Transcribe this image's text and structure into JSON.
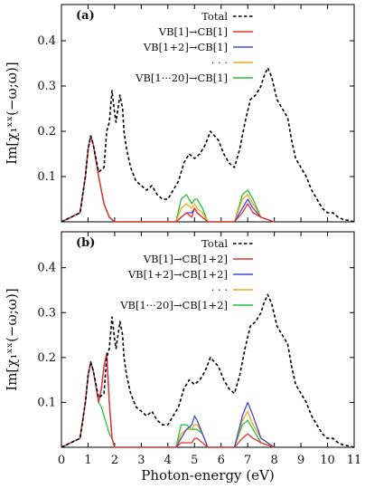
{
  "chart_data": [
    {
      "type": "line",
      "panel_label": "(a)",
      "xlabel": "",
      "ylabel": "Im[χ₁ˣˣ(−ω;ω)]",
      "xlim": [
        0,
        11
      ],
      "ylim": [
        0,
        0.48
      ],
      "xticks": [
        "0",
        "1",
        "2",
        "3",
        "4",
        "5",
        "6",
        "7",
        "8",
        "9",
        "10",
        "11"
      ],
      "yticks": [
        {
          "v": 0.1,
          "label": "0.1"
        },
        {
          "v": 0.2,
          "label": "0.2"
        },
        {
          "v": 0.3,
          "label": "0.3"
        },
        {
          "v": 0.4,
          "label": "0.4"
        }
      ],
      "legend_position": "top-right",
      "series": [
        {
          "name": "Total",
          "color": "#000000",
          "style": "dashed",
          "x": [
            0,
            0.7,
            0.9,
            1.0,
            1.1,
            1.2,
            1.4,
            1.6,
            1.7,
            1.8,
            1.9,
            2.0,
            2.05,
            2.2,
            2.3,
            2.35,
            2.45,
            2.6,
            2.8,
            3.0,
            3.2,
            3.4,
            3.6,
            3.8,
            4.0,
            4.2,
            4.4,
            4.6,
            4.8,
            5.0,
            5.2,
            5.4,
            5.6,
            5.75,
            5.9,
            6.1,
            6.3,
            6.5,
            6.7,
            6.9,
            7.1,
            7.3,
            7.5,
            7.6,
            7.75,
            7.9,
            8.1,
            8.3,
            8.5,
            8.65,
            8.8,
            9.0,
            9.2,
            9.4,
            9.6,
            9.8,
            10.0,
            10.2,
            10.4,
            10.6,
            10.8,
            11.0
          ],
          "y": [
            0,
            0.02,
            0.1,
            0.16,
            0.19,
            0.17,
            0.11,
            0.12,
            0.2,
            0.22,
            0.29,
            0.24,
            0.22,
            0.28,
            0.25,
            0.2,
            0.16,
            0.12,
            0.09,
            0.08,
            0.07,
            0.08,
            0.06,
            0.05,
            0.05,
            0.07,
            0.09,
            0.13,
            0.15,
            0.14,
            0.15,
            0.17,
            0.2,
            0.19,
            0.18,
            0.15,
            0.13,
            0.12,
            0.16,
            0.22,
            0.27,
            0.28,
            0.3,
            0.32,
            0.34,
            0.32,
            0.27,
            0.25,
            0.23,
            0.18,
            0.14,
            0.12,
            0.1,
            0.07,
            0.05,
            0.03,
            0.02,
            0.02,
            0.01,
            0.005,
            0.003,
            0
          ]
        },
        {
          "name": "VB[1]→CB[1]",
          "color": "#e8322d",
          "style": "solid",
          "x": [
            0,
            0.7,
            0.9,
            1.0,
            1.1,
            1.2,
            1.4,
            1.6,
            1.8,
            2.0,
            4.3,
            4.5,
            4.7,
            4.9,
            5.0,
            5.1,
            5.3,
            5.5,
            6.5,
            6.8,
            7.0,
            7.2,
            7.5,
            8.0
          ],
          "y": [
            0,
            0.02,
            0.1,
            0.16,
            0.19,
            0.17,
            0.1,
            0.04,
            0.01,
            0,
            0,
            0.01,
            0.02,
            0.01,
            0.03,
            0.02,
            0.01,
            0,
            0,
            0.02,
            0.04,
            0.02,
            0.01,
            0
          ]
        },
        {
          "name": "VB[1+2]→CB[1]",
          "color": "#3d4bd6",
          "style": "solid",
          "x": [
            0,
            0.7,
            0.9,
            1.0,
            1.1,
            1.2,
            1.4,
            1.6,
            1.8,
            2.0,
            4.3,
            4.5,
            4.7,
            4.9,
            5.0,
            5.1,
            5.3,
            5.5,
            6.5,
            6.8,
            7.0,
            7.2,
            7.5,
            8.0
          ],
          "y": [
            0,
            0.02,
            0.1,
            0.16,
            0.19,
            0.17,
            0.1,
            0.04,
            0.01,
            0,
            0,
            0.01,
            0.02,
            0.02,
            0.03,
            0.02,
            0.01,
            0,
            0,
            0.03,
            0.05,
            0.03,
            0.01,
            0
          ]
        },
        {
          "name": "· · ·",
          "color": "#f2a81d",
          "style": "solid",
          "x": [
            0,
            0.7,
            0.9,
            1.0,
            1.1,
            1.2,
            1.4,
            1.6,
            1.8,
            2.0,
            4.3,
            4.5,
            4.7,
            4.9,
            5.0,
            5.1,
            5.3,
            5.5,
            6.5,
            6.8,
            7.0,
            7.2,
            7.5,
            8.0
          ],
          "y": [
            0,
            0.02,
            0.1,
            0.16,
            0.19,
            0.17,
            0.1,
            0.04,
            0.01,
            0,
            0,
            0.03,
            0.04,
            0.03,
            0.04,
            0.03,
            0.02,
            0,
            0,
            0.05,
            0.06,
            0.04,
            0.01,
            0
          ]
        },
        {
          "name": "VB[1···20]→CB[1]",
          "color": "#27c23a",
          "style": "solid",
          "x": [
            0,
            0.7,
            0.9,
            1.0,
            1.1,
            1.2,
            1.4,
            1.6,
            1.8,
            2.0,
            4.3,
            4.5,
            4.7,
            4.9,
            5.0,
            5.1,
            5.3,
            5.5,
            6.5,
            6.8,
            7.0,
            7.2,
            7.5,
            8.0
          ],
          "y": [
            0,
            0.02,
            0.1,
            0.16,
            0.19,
            0.17,
            0.1,
            0.04,
            0.01,
            0,
            0,
            0.05,
            0.06,
            0.04,
            0.05,
            0.05,
            0.03,
            0,
            0,
            0.06,
            0.07,
            0.05,
            0.01,
            0
          ]
        }
      ],
      "legend": [
        {
          "label": "Total",
          "color": "#000000",
          "style": "dashed"
        },
        {
          "label": "VB[1]→CB[1]",
          "color": "#e8322d",
          "style": "solid"
        },
        {
          "label": "VB[1+2]→CB[1]",
          "color": "#3d4bd6",
          "style": "solid"
        },
        {
          "label": "· · ·",
          "color": "#f2a81d",
          "style": "solid"
        },
        {
          "label": "VB[1···20]→CB[1]",
          "color": "#27c23a",
          "style": "solid"
        }
      ]
    },
    {
      "type": "line",
      "panel_label": "(b)",
      "xlabel": "Photon-energy (eV)",
      "ylabel": "Im[χ₁ˣˣ(−ω;ω)]",
      "xlim": [
        0,
        11
      ],
      "ylim": [
        0,
        0.48
      ],
      "xticks": [
        "0",
        "1",
        "2",
        "3",
        "4",
        "5",
        "6",
        "7",
        "8",
        "9",
        "10",
        "11"
      ],
      "yticks": [
        {
          "v": 0.1,
          "label": "0.1"
        },
        {
          "v": 0.2,
          "label": "0.2"
        },
        {
          "v": 0.3,
          "label": "0.3"
        },
        {
          "v": 0.4,
          "label": "0.4"
        }
      ],
      "legend_position": "top-right",
      "series": [
        {
          "name": "Total",
          "color": "#000000",
          "style": "dashed",
          "x": [
            0,
            0.7,
            0.9,
            1.0,
            1.1,
            1.2,
            1.4,
            1.6,
            1.7,
            1.8,
            1.9,
            2.0,
            2.05,
            2.2,
            2.3,
            2.35,
            2.45,
            2.6,
            2.8,
            3.0,
            3.2,
            3.4,
            3.6,
            3.8,
            4.0,
            4.2,
            4.4,
            4.6,
            4.8,
            5.0,
            5.2,
            5.4,
            5.6,
            5.75,
            5.9,
            6.1,
            6.3,
            6.5,
            6.7,
            6.9,
            7.1,
            7.3,
            7.5,
            7.6,
            7.75,
            7.9,
            8.1,
            8.3,
            8.5,
            8.65,
            8.8,
            9.0,
            9.2,
            9.4,
            9.6,
            9.8,
            10.0,
            10.2,
            10.4,
            10.6,
            10.8,
            11.0
          ],
          "y": [
            0,
            0.02,
            0.1,
            0.16,
            0.19,
            0.17,
            0.11,
            0.12,
            0.2,
            0.22,
            0.29,
            0.24,
            0.22,
            0.28,
            0.25,
            0.2,
            0.16,
            0.12,
            0.09,
            0.08,
            0.07,
            0.08,
            0.06,
            0.05,
            0.05,
            0.07,
            0.09,
            0.13,
            0.15,
            0.14,
            0.15,
            0.17,
            0.2,
            0.19,
            0.18,
            0.15,
            0.13,
            0.12,
            0.16,
            0.22,
            0.27,
            0.28,
            0.3,
            0.32,
            0.34,
            0.32,
            0.27,
            0.25,
            0.23,
            0.18,
            0.14,
            0.12,
            0.1,
            0.07,
            0.05,
            0.03,
            0.02,
            0.02,
            0.01,
            0.005,
            0.003,
            0
          ]
        },
        {
          "name": "VB[1]→CB[1+2]",
          "color": "#e8322d",
          "style": "solid",
          "x": [
            0,
            0.7,
            0.9,
            1.0,
            1.1,
            1.2,
            1.4,
            1.5,
            1.6,
            1.7,
            1.8,
            1.9,
            2.0,
            4.3,
            4.5,
            4.7,
            4.9,
            5.0,
            5.1,
            5.3,
            5.5,
            6.5,
            6.8,
            7.0,
            7.2,
            7.5,
            8.0
          ],
          "y": [
            0,
            0.02,
            0.1,
            0.16,
            0.19,
            0.17,
            0.1,
            0.13,
            0.18,
            0.21,
            0.1,
            0.02,
            0,
            0,
            0.01,
            0.01,
            0.01,
            0.02,
            0.02,
            0.01,
            0,
            0,
            0.02,
            0.03,
            0.02,
            0.01,
            0
          ]
        },
        {
          "name": "VB[1+2]→CB[1+2]",
          "color": "#3d4bd6",
          "style": "solid",
          "x": [
            0,
            0.7,
            0.9,
            1.0,
            1.1,
            1.2,
            1.4,
            1.5,
            1.6,
            1.7,
            1.8,
            1.9,
            2.0,
            4.3,
            4.5,
            4.7,
            4.9,
            5.0,
            5.1,
            5.3,
            5.5,
            6.5,
            6.8,
            7.0,
            7.2,
            7.5,
            8.0
          ],
          "y": [
            0,
            0.02,
            0.1,
            0.16,
            0.19,
            0.17,
            0.1,
            0.13,
            0.18,
            0.21,
            0.1,
            0.02,
            0,
            0,
            0.02,
            0.04,
            0.05,
            0.07,
            0.06,
            0.03,
            0,
            0,
            0.07,
            0.1,
            0.07,
            0.02,
            0
          ]
        },
        {
          "name": "· · ·",
          "color": "#f2a81d",
          "style": "solid",
          "x": [
            0,
            0.7,
            0.9,
            1.0,
            1.1,
            1.2,
            1.4,
            1.5,
            1.6,
            1.7,
            1.8,
            1.9,
            2.0,
            4.3,
            4.5,
            4.7,
            4.9,
            5.0,
            5.1,
            5.3,
            5.5,
            6.5,
            6.8,
            7.0,
            7.2,
            7.5,
            8.0
          ],
          "y": [
            0,
            0.02,
            0.1,
            0.16,
            0.19,
            0.17,
            0.1,
            0.13,
            0.18,
            0.21,
            0.1,
            0.02,
            0,
            0,
            0.03,
            0.04,
            0.04,
            0.05,
            0.05,
            0.03,
            0,
            0,
            0.06,
            0.08,
            0.05,
            0.02,
            0
          ]
        },
        {
          "name": "VB[1···20]→CB[1+2]",
          "color": "#27c23a",
          "style": "solid",
          "x": [
            0,
            0.7,
            0.9,
            1.0,
            1.1,
            1.2,
            1.4,
            1.5,
            1.6,
            1.7,
            1.8,
            1.9,
            2.0,
            4.3,
            4.5,
            4.7,
            4.9,
            5.0,
            5.1,
            5.3,
            5.5,
            6.5,
            6.8,
            7.0,
            7.2,
            7.5,
            8.0
          ],
          "y": [
            0,
            0.02,
            0.1,
            0.16,
            0.19,
            0.17,
            0.1,
            0.09,
            0.07,
            0.05,
            0.03,
            0.02,
            0,
            0,
            0.05,
            0.05,
            0.04,
            0.04,
            0.04,
            0.03,
            0,
            0,
            0.05,
            0.06,
            0.04,
            0.01,
            0
          ]
        }
      ],
      "legend": [
        {
          "label": "Total",
          "color": "#000000",
          "style": "dashed"
        },
        {
          "label": "VB[1]→CB[1+2]",
          "color": "#e8322d",
          "style": "solid"
        },
        {
          "label": "VB[1+2]→CB[1+2]",
          "color": "#3d4bd6",
          "style": "solid"
        },
        {
          "label": "· · ·",
          "color": "#f2a81d",
          "style": "solid"
        },
        {
          "label": "VB[1···20]→CB[1+2]",
          "color": "#27c23a",
          "style": "solid"
        }
      ]
    }
  ]
}
